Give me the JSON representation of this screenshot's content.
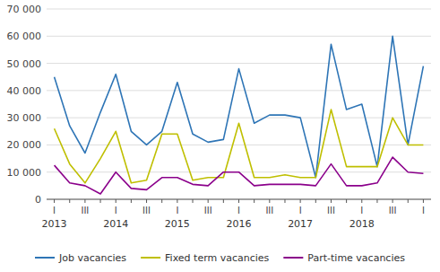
{
  "chart_data": {
    "type": "line",
    "categories": [
      "I",
      null,
      "III",
      null,
      "I",
      null,
      "III",
      null,
      "I",
      null,
      "III",
      null,
      "I",
      null,
      "III",
      null,
      "I",
      null,
      "III",
      null,
      "I",
      null,
      "III",
      null,
      "I"
    ],
    "series": [
      {
        "name": "Job vacancies",
        "color": "#2e75b6",
        "values": [
          45000,
          27000,
          17000,
          32000,
          46000,
          25000,
          20000,
          25000,
          43000,
          24000,
          21000,
          22000,
          48000,
          28000,
          31000,
          31000,
          30000,
          8000,
          57000,
          33000,
          35000,
          12000,
          60000,
          20000,
          49000
        ]
      },
      {
        "name": "Fixed term vacancies",
        "color": "#bfbf00",
        "values": [
          26000,
          13000,
          6000,
          15000,
          25000,
          6000,
          7000,
          24000,
          24000,
          7000,
          8000,
          8000,
          28000,
          8000,
          8000,
          9000,
          8000,
          8000,
          33000,
          12000,
          12000,
          12000,
          30000,
          20000,
          20000
        ]
      },
      {
        "name": "Part-time vacancies",
        "color": "#8b008b",
        "values": [
          12500,
          6000,
          5000,
          2000,
          10000,
          4000,
          3500,
          8000,
          8000,
          5500,
          5000,
          10000,
          10000,
          5000,
          5500,
          5500,
          5500,
          5000,
          13000,
          5000,
          5000,
          6000,
          15500,
          10000,
          9500
        ]
      }
    ],
    "annotations": [
      {
        "text": "2013",
        "x": 0
      },
      {
        "text": "2014",
        "x": 4
      },
      {
        "text": "2015",
        "x": 8
      },
      {
        "text": "2016",
        "x": 12
      },
      {
        "text": "2017",
        "x": 16
      },
      {
        "text": "2018",
        "x": 20
      }
    ],
    "ylim": [
      0,
      70000
    ],
    "yticks": [
      0,
      {
        "value": 10000,
        "label": "10 000"
      },
      {
        "value": 20000,
        "label": "20 000"
      },
      {
        "value": 30000,
        "label": "30 000"
      },
      {
        "value": 40000,
        "label": "40 000"
      },
      {
        "value": 50000,
        "label": "50 000"
      },
      {
        "value": 60000,
        "label": "60 000"
      },
      {
        "value": 70000,
        "label": "70 000"
      }
    ],
    "grid": true,
    "legend": "bottom"
  }
}
